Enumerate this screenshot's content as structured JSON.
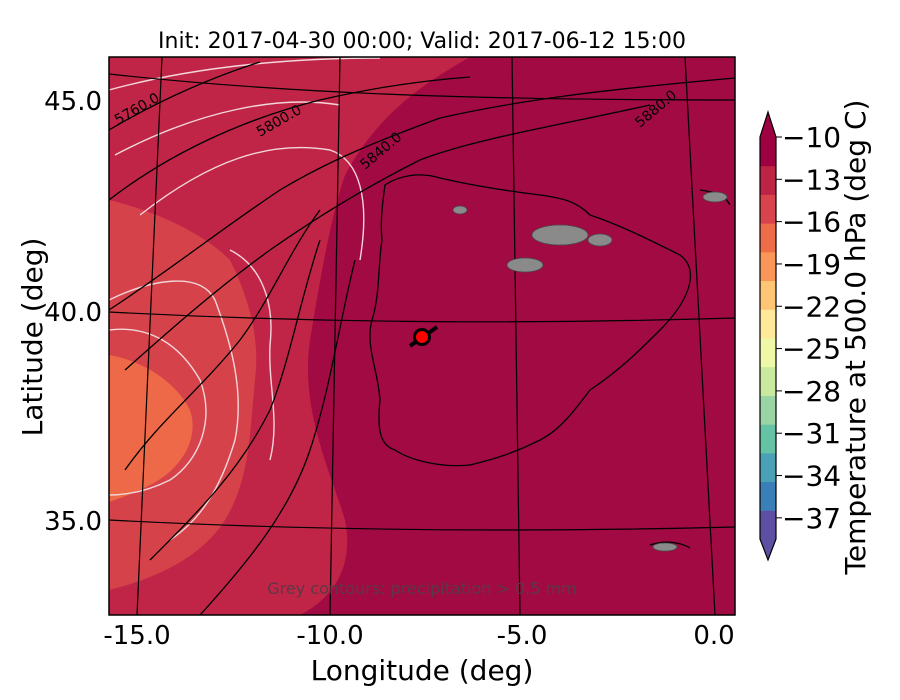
{
  "title": "Init: 2017-04-30 00:00; Valid: 2017-06-12 15:00",
  "xlabel": "Longitude (deg)",
  "ylabel": "Latitude (deg)",
  "x_ticks": [
    "-15.0",
    "-10.0",
    "-5.0",
    "0.0"
  ],
  "y_ticks": [
    "45.0",
    "40.0",
    "35.0"
  ],
  "colorbar": {
    "label": "Temperature at 500.0 hPa (deg C)",
    "ticks": [
      "−10",
      "−13",
      "−16",
      "−19",
      "−22",
      "−25",
      "−28",
      "−31",
      "−34",
      "−37"
    ],
    "colors": [
      "#5e4fa2",
      "#3a7fb8",
      "#4aa0b4",
      "#66c2a5",
      "#99d5a4",
      "#c9e99e",
      "#eff8a6",
      "#fee99a",
      "#fdc574",
      "#f99658",
      "#ef6c48",
      "#d9434c",
      "#be2446",
      "#9e0142"
    ]
  },
  "contour_labels": [
    "5760.0",
    "5800.0",
    "5840.0",
    "5880.0"
  ],
  "note": "Grey contours: precipitation > 0.5 mm",
  "colors": {
    "background_field": "#a10a43",
    "warm_band": "#c02547",
    "warmer_band": "#d5424a",
    "warmest_band": "#ee6947",
    "marker": "#ff0000",
    "contour_white": "#f2d6d9",
    "contour_black": "#000000"
  },
  "chart_data": {
    "type": "heatmap",
    "title": "Init: 2017-04-30 00:00; Valid: 2017-06-12 15:00",
    "xlabel": "Longitude (deg)",
    "ylabel": "Latitude (deg)",
    "xlim": [
      -16.0,
      0.3
    ],
    "ylim": [
      32.5,
      46.0
    ],
    "geopotential_contours": [
      5760.0,
      5800.0,
      5840.0,
      5880.0
    ],
    "colorbar_range": [
      -37,
      -10
    ],
    "marker": {
      "lon": -7.7,
      "lat": 39.3
    }
  }
}
